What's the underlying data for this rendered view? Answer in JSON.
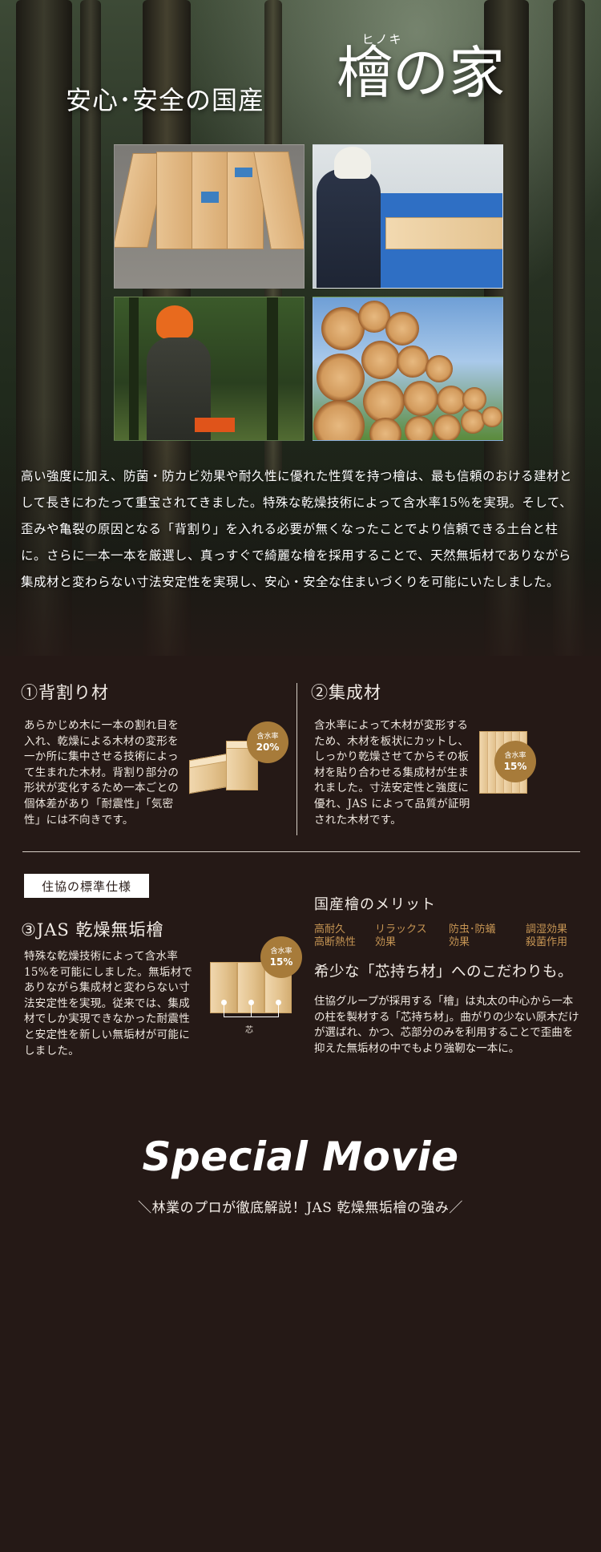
{
  "hero": {
    "subtitle": "安心･安全の国産",
    "ruby": "ヒノキ",
    "title": "檜の家",
    "description": "高い強度に加え、防菌・防カビ効果や耐久性に優れた性質を持つ檜は、最も信頼のおける建材として長きにわたって重宝されてきました。特殊な乾燥技術によって含水率15％を実現。そして、歪みや亀裂の原因となる「背割り」を入れる必要が無くなったことでより信頼できる土台と柱に。さらに一本一本を厳選し、真っすぐで綺麗な檜を採用することで、天然無垢材でありながら集成材と変わらない寸法安定性を実現し、安心・安全な住まいづくりを可能にいたしました。"
  },
  "features": {
    "f1": {
      "title": "①背割り材",
      "body": "あらかじめ木に一本の割れ目を入れ、乾燥による木材の変形を一か所に集中させる技術によって生まれた木材。背割り部分の形状が変化するため一本ごとの個体差があり「耐震性」「気密性」には不向きです。",
      "badge_label": "含水率",
      "badge_value": "20%"
    },
    "f2": {
      "title": "②集成材",
      "body": "含水率によって木材が変形するため、木材を板状にカットし、しっかり乾燥させてからその板材を貼り合わせる集成材が生まれました。寸法安定性と強度に優れ、JAS によって品質が証明された木材です。",
      "badge_label": "含水率",
      "badge_value": "15%"
    },
    "standard_label": "住協の標準仕様",
    "f3": {
      "title": "③JAS 乾燥無垢檜",
      "body": "特殊な乾燥技術によって含水率15%を可能にしました。無垢材でありながら集成材と変わらない寸法安定性を実現。従来では、集成材でしか実現できなかった耐震性と安定性を新しい無垢材が可能にしました。",
      "badge_label": "含水率",
      "badge_value": "15%",
      "core_label": "芯"
    }
  },
  "merit": {
    "title": "国産檜のメリット",
    "items": [
      {
        "line1": "高耐久",
        "line2": "高断熱性"
      },
      {
        "line1": "リラックス",
        "line2": "効果"
      },
      {
        "line1": "防虫･防蟻",
        "line2": "効果"
      },
      {
        "line1": "調湿効果",
        "line2": "殺菌作用"
      }
    ],
    "heading": "希少な「芯持ち材」へのこだわりも。",
    "body": "住協グループが採用する「檜」は丸太の中心から一本の柱を製材する「芯持ち材」。曲がりの少ない原木だけが選ばれ、かつ、芯部分のみを利用することで歪曲を抑えた無垢材の中でもより強靭な一本に。"
  },
  "movie": {
    "title": "Special Movie",
    "subtitle": "＼林業のプロが徹底解説！JAS 乾燥無垢檜の強み／"
  }
}
